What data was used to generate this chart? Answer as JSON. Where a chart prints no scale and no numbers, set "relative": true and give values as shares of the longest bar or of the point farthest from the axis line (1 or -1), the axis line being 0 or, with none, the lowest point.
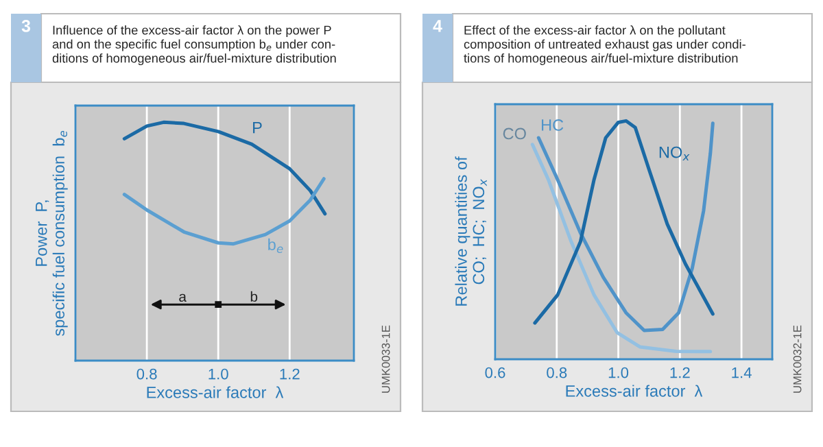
{
  "chart_data": [
    {
      "type": "line",
      "title": "Influence of the excess-air factor λ on the power P\nand on the specific fuel consumption b$_{e}$ under con-\nditions of homogeneous air/fuel-mixture distribution",
      "xlabel": "Excess-air factor  λ",
      "ylabel": "Power  P,\nspecific fuel consumption  b$_{e}$",
      "relative": true,
      "xlim": [
        0.6,
        1.38
      ],
      "xticks": [
        0.8,
        {
          "value": 1.0,
          "label": "1.0"
        },
        1.2
      ],
      "grid": "x",
      "legend": false,
      "series": [
        {
          "name": "P",
          "color": "#1b6aa5",
          "x": [
            0.737,
            0.8,
            0.847,
            0.904,
            1.0,
            1.094,
            1.2,
            1.258,
            1.299
          ],
          "values": [
            0.931,
            0.984,
            1.0,
            0.995,
            0.961,
            0.908,
            0.805,
            0.713,
            0.616
          ]
        },
        {
          "name": "b$_{e}$",
          "color": "#5b9fd1",
          "x": [
            0.737,
            0.8,
            0.904,
            1.0,
            1.043,
            1.132,
            1.2,
            1.258,
            1.296
          ],
          "values": [
            0.697,
            0.632,
            0.54,
            0.494,
            0.49,
            0.529,
            0.586,
            0.674,
            0.763
          ]
        }
      ],
      "annotations": [
        "3",
        "UMK0033-1E",
        "a",
        "b"
      ]
    },
    {
      "type": "line",
      "title": "Effect of the excess-air factor λ on the pollutant\ncomposition of untreated exhaust gas under condi-\ntions of homogeneous air/fuel-mixture distribution",
      "xlabel": "Excess-air factor  λ",
      "ylabel": "Relative quantities of\nCO;  HC;  NO$_{x}$",
      "relative": true,
      "xlim": [
        0.6,
        1.5
      ],
      "xticks": [
        0.6,
        0.8,
        {
          "value": 1.0,
          "label": "1.0"
        },
        1.2,
        1.4
      ],
      "grid": "x",
      "legend": false,
      "series": [
        {
          "name": "CO",
          "color": "#93c0e2",
          "x": [
            0.721,
            0.773,
            0.847,
            0.921,
            0.996,
            1.07,
            1.188,
            1.299
          ],
          "values": [
            0.901,
            0.753,
            0.493,
            0.27,
            0.112,
            0.052,
            0.033,
            0.032
          ]
        },
        {
          "name": "HC",
          "color": "#4f93c9",
          "x": [
            0.741,
            0.803,
            0.877,
            0.951,
            1.025,
            1.084,
            1.144,
            1.196,
            1.24,
            1.277,
            1.299,
            1.307
          ],
          "values": [
            0.929,
            0.753,
            0.53,
            0.344,
            0.195,
            0.121,
            0.125,
            0.195,
            0.381,
            0.623,
            0.864,
            0.99
          ]
        },
        {
          "name": "NO$_{x}$",
          "color": "#1b6aa5",
          "x": [
            0.729,
            0.803,
            0.877,
            0.921,
            0.959,
            1.0,
            1.025,
            1.055,
            1.099,
            1.159,
            1.218,
            1.307
          ],
          "values": [
            0.152,
            0.27,
            0.493,
            0.753,
            0.929,
            0.994,
            1.0,
            0.972,
            0.799,
            0.567,
            0.4,
            0.19
          ]
        }
      ],
      "annotations": [
        "4",
        "UMK0032-1E"
      ]
    }
  ]
}
